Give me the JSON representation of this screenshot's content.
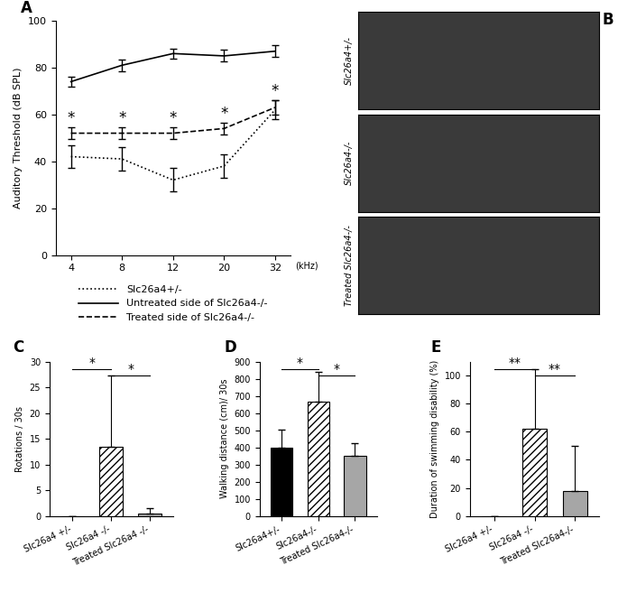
{
  "chart_data": [
    {
      "type": "line",
      "title": "A",
      "categories": [
        "4",
        "8",
        "12",
        "20",
        "32"
      ],
      "x_label": "(kHz)",
      "y_label": "Auditory Threshold (dB SPL)",
      "ylim": [
        0,
        100
      ],
      "yticks": [
        0,
        20,
        40,
        60,
        80,
        100
      ],
      "legend": "below",
      "series": [
        {
          "name": "Slc26a4+/-",
          "color": "#000000",
          "line_style": "dotted",
          "values": [
            42,
            41,
            32,
            38,
            62
          ],
          "errors": [
            5,
            5,
            5,
            5,
            4
          ]
        },
        {
          "name": "Untreated side of Slc26a4-/-",
          "color": "#000000",
          "line_style": "solid",
          "values": [
            74,
            81,
            86,
            85,
            87
          ],
          "errors": [
            2,
            2.5,
            2,
            2.5,
            2.5
          ]
        },
        {
          "name": "Treated side of Slc26a4-/-",
          "color": "#000000",
          "line_style": "dashed",
          "values": [
            52,
            52,
            52,
            54,
            63
          ],
          "errors": [
            2.5,
            2.5,
            2.5,
            2.5,
            3
          ],
          "significance": [
            "*",
            "*",
            "*",
            "*",
            "*"
          ]
        }
      ]
    },
    {
      "type": "image",
      "title": "B",
      "labels": [
        "Slc26a4+/-",
        "Slc26a4-/-",
        "Treated Slc26a4-/-"
      ]
    },
    {
      "type": "bar",
      "title": "C",
      "categories": [
        "Slc26a4 +/-",
        "Slc26a4 -/-",
        "Treated Slc26a4 -/-"
      ],
      "y_label": "Rotations / 30s",
      "values": [
        0,
        13.5,
        0.5
      ],
      "errors": [
        0,
        13.8,
        1
      ],
      "colors": [
        "#000000",
        "#ffffff",
        "#a6a6a6"
      ],
      "ylim": [
        0,
        30
      ],
      "yticks": [
        0,
        5,
        10,
        15,
        20,
        25,
        30
      ],
      "comparisons": [
        {
          "from": "Slc26a4 +/-",
          "to": "Slc26a4 -/-",
          "label": "*"
        },
        {
          "from": "Slc26a4 -/-",
          "to": "Treated Slc26a4 -/-",
          "label": "*"
        }
      ]
    },
    {
      "type": "bar",
      "title": "D",
      "categories": [
        "Slc26a4+/-",
        "Slc26a4-/-",
        "Treated Slc26a4-/-"
      ],
      "y_label": "Walking distance (cm)/ 30s",
      "values": [
        400,
        665,
        350
      ],
      "errors": [
        105,
        175,
        75
      ],
      "colors": [
        "#000000",
        "#ffffff",
        "#a6a6a6"
      ],
      "ylim": [
        0,
        900
      ],
      "yticks": [
        0,
        100,
        200,
        300,
        400,
        500,
        600,
        700,
        800,
        900
      ],
      "comparisons": [
        {
          "from": "Slc26a4+/-",
          "to": "Slc26a4-/-",
          "label": "*"
        },
        {
          "from": "Slc26a4-/-",
          "to": "Treated Slc26a4-/-",
          "label": "*"
        }
      ]
    },
    {
      "type": "bar",
      "title": "E",
      "categories": [
        "Slc26a4 +/-",
        "Slc26a4 -/-",
        "Treated Slc26a4-/-"
      ],
      "y_label": "Duration of swimming disability (%)",
      "values": [
        0,
        62,
        18
      ],
      "errors": [
        0,
        43,
        32
      ],
      "colors": [
        "#000000",
        "#ffffff",
        "#a6a6a6"
      ],
      "ylim": [
        0,
        110
      ],
      "yticks": [
        0,
        20,
        40,
        60,
        80,
        100
      ],
      "comparisons": [
        {
          "from": "Slc26a4 +/-",
          "to": "Slc26a4 -/-",
          "label": "**"
        },
        {
          "from": "Slc26a4 -/-",
          "to": "Treated Slc26a4-/-",
          "label": "**"
        }
      ]
    }
  ]
}
